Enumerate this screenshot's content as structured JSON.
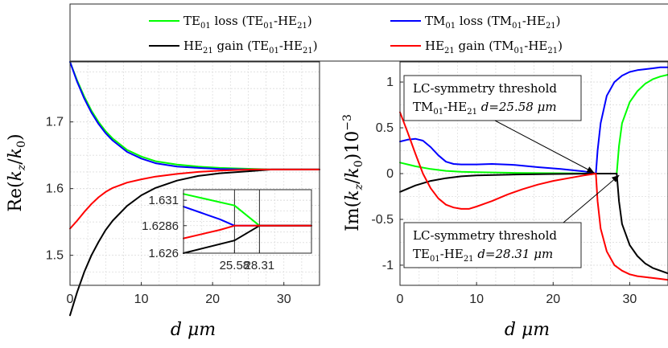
{
  "chart_data": [
    {
      "type": "line",
      "id": "left",
      "xlabel": "d μm",
      "ylabel": "Re(k_z/k_0)",
      "xlim": [
        0,
        35
      ],
      "ylim": [
        1.455,
        1.79
      ],
      "xticks": [
        0,
        10,
        20,
        30
      ],
      "yticks": [
        1.5,
        1.6,
        1.7
      ],
      "xtick_labels": [
        "0",
        "10",
        "20",
        "30"
      ],
      "ytick_labels": [
        "1.5",
        "1.6",
        "1.7"
      ],
      "grid": true,
      "series": [
        {
          "name": "TE01 loss (TE01-HE21)",
          "color": "#00ff00",
          "x": [
            0,
            1,
            2,
            3,
            4,
            5,
            6,
            8,
            10,
            12,
            15,
            18,
            21,
            25,
            28.31,
            32,
            35
          ],
          "y": [
            1.79,
            1.762,
            1.738,
            1.717,
            1.7,
            1.686,
            1.675,
            1.658,
            1.648,
            1.641,
            1.636,
            1.633,
            1.631,
            1.6297,
            1.6286,
            1.6286,
            1.6286
          ]
        },
        {
          "name": "TM01 loss (TM01-HE21)",
          "color": "#0000ff",
          "x": [
            0,
            1,
            2,
            3,
            4,
            5,
            6,
            8,
            10,
            12,
            15,
            18,
            21,
            25.58,
            28,
            32,
            35
          ],
          "y": [
            1.79,
            1.76,
            1.735,
            1.714,
            1.697,
            1.683,
            1.672,
            1.655,
            1.645,
            1.638,
            1.633,
            1.631,
            1.6295,
            1.6286,
            1.6286,
            1.6286,
            1.6286
          ]
        },
        {
          "name": "HE21 gain (TE01-HE21)",
          "color": "#000000",
          "x": [
            0,
            1,
            2,
            3,
            4,
            5,
            6,
            8,
            10,
            12,
            15,
            18,
            21,
            25,
            28.31,
            32,
            35
          ],
          "y": [
            1.41,
            1.445,
            1.475,
            1.5,
            1.52,
            1.538,
            1.552,
            1.574,
            1.59,
            1.601,
            1.612,
            1.619,
            1.623,
            1.626,
            1.6286,
            1.6286,
            1.6286
          ]
        },
        {
          "name": "HE21 gain (TM01-HE21)",
          "color": "#ff0000",
          "x": [
            0,
            1,
            2,
            3,
            4,
            5,
            6,
            8,
            10,
            12,
            15,
            18,
            21,
            25.58,
            28,
            32,
            35
          ],
          "y": [
            1.54,
            1.552,
            1.565,
            1.577,
            1.587,
            1.595,
            1.601,
            1.609,
            1.614,
            1.618,
            1.622,
            1.625,
            1.627,
            1.6286,
            1.6286,
            1.6286,
            1.6286
          ]
        }
      ]
    },
    {
      "type": "line",
      "id": "inset",
      "xlim": [
        20,
        34
      ],
      "ylim": [
        1.626,
        1.632
      ],
      "xticks": [
        25.58,
        28.31
      ],
      "yticks": [
        1.626,
        1.6286,
        1.631
      ],
      "xtick_labels": [
        "25.58",
        "28.31"
      ],
      "ytick_labels": [
        "1.626",
        "1.6286",
        "1.631"
      ],
      "grid": true,
      "series": [
        {
          "name": "TE01 loss (TE01-HE21)",
          "color": "#00ff00",
          "x": [
            20,
            25.58,
            28.31,
            34
          ],
          "y": [
            1.6316,
            1.6305,
            1.6286,
            1.6286
          ]
        },
        {
          "name": "TM01 loss (TM01-HE21)",
          "color": "#0000ff",
          "x": [
            20,
            22,
            24,
            25.58,
            34
          ],
          "y": [
            1.6304,
            1.6298,
            1.6292,
            1.6286,
            1.6286
          ]
        },
        {
          "name": "HE21 gain (TE01-HE21)",
          "color": "#000000",
          "x": [
            20,
            25.58,
            28.31,
            34
          ],
          "y": [
            1.626,
            1.6272,
            1.6286,
            1.6286
          ]
        },
        {
          "name": "HE21 gain (TM01-HE21)",
          "color": "#ff0000",
          "x": [
            20,
            22,
            24,
            25.58,
            34
          ],
          "y": [
            1.6274,
            1.6278,
            1.6282,
            1.6286,
            1.6286
          ]
        }
      ]
    },
    {
      "type": "line",
      "id": "right",
      "xlabel": "d μm",
      "ylabel": "Im(k_z/k_0)10^-3",
      "xlim": [
        0,
        35
      ],
      "ylim": [
        -1.22,
        1.22
      ],
      "xticks": [
        0,
        10,
        20,
        30
      ],
      "yticks": [
        -1,
        -0.5,
        0,
        0.5,
        1
      ],
      "xtick_labels": [
        "0",
        "10",
        "20",
        "30"
      ],
      "ytick_labels": [
        "-1",
        "-0.5",
        "0",
        "0.5",
        "1"
      ],
      "grid": true,
      "series": [
        {
          "name": "TE01 loss (TE01-HE21)",
          "color": "#00ff00",
          "x": [
            0,
            2,
            4,
            6,
            8,
            10,
            15,
            20,
            25.58,
            28.31,
            28.6,
            29,
            30,
            31,
            32,
            33,
            34,
            35
          ],
          "y": [
            0.12,
            0.08,
            0.05,
            0.03,
            0.02,
            0.015,
            0.008,
            0.004,
            0,
            0,
            0.3,
            0.55,
            0.78,
            0.9,
            0.98,
            1.03,
            1.06,
            1.08
          ]
        },
        {
          "name": "TM01 loss (TM01-HE21)",
          "color": "#0000ff",
          "x": [
            0,
            1,
            2,
            3,
            4,
            5,
            6,
            7,
            8,
            10,
            12,
            15,
            18,
            21,
            24,
            25.58,
            25.8,
            26.2,
            27,
            28,
            29,
            30,
            31,
            32,
            33,
            34,
            35
          ],
          "y": [
            0.35,
            0.37,
            0.38,
            0.36,
            0.29,
            0.2,
            0.13,
            0.105,
            0.1,
            0.1,
            0.105,
            0.095,
            0.07,
            0.05,
            0.025,
            0,
            0.25,
            0.55,
            0.85,
            1.0,
            1.07,
            1.11,
            1.13,
            1.14,
            1.15,
            1.16,
            1.16
          ]
        },
        {
          "name": "HE21 gain (TE01-HE21)",
          "color": "#000000",
          "x": [
            0,
            2,
            4,
            6,
            8,
            10,
            15,
            20,
            25.58,
            28.31,
            28.6,
            29,
            30,
            31,
            32,
            33,
            34,
            35
          ],
          "y": [
            -0.2,
            -0.13,
            -0.08,
            -0.05,
            -0.03,
            -0.02,
            -0.01,
            -0.004,
            0,
            0,
            -0.3,
            -0.55,
            -0.78,
            -0.9,
            -0.98,
            -1.03,
            -1.06,
            -1.09
          ]
        },
        {
          "name": "HE21 gain (TM01-HE21)",
          "color": "#ff0000",
          "x": [
            0,
            1,
            2,
            3,
            4,
            5,
            6,
            7,
            8,
            9,
            10,
            12,
            14,
            16,
            18,
            20,
            22,
            24,
            25.58,
            25.8,
            26.2,
            27,
            28,
            29,
            30,
            31,
            32,
            33,
            34,
            35
          ],
          "y": [
            0.67,
            0.45,
            0.22,
            0.0,
            -0.16,
            -0.27,
            -0.34,
            -0.37,
            -0.385,
            -0.385,
            -0.36,
            -0.3,
            -0.23,
            -0.17,
            -0.12,
            -0.08,
            -0.05,
            -0.02,
            0,
            -0.3,
            -0.6,
            -0.85,
            -1.0,
            -1.06,
            -1.1,
            -1.12,
            -1.13,
            -1.14,
            -1.15,
            -1.16
          ]
        }
      ]
    }
  ],
  "legend": [
    {
      "label_main": "TE",
      "label_sub": "01",
      "label_rest": " loss  (TE",
      "label_sub2": "01",
      "label_mid": "-HE",
      "label_sub3": "21",
      "label_end": ")",
      "color": "#00ff00"
    },
    {
      "label_main": "TM",
      "label_sub": "01",
      "label_rest": " loss (TM",
      "label_sub2": "01",
      "label_mid": "-HE",
      "label_sub3": "21",
      "label_end": ")",
      "color": "#0000ff"
    },
    {
      "label_main": "HE",
      "label_sub": "21",
      "label_rest": " gain (TE",
      "label_sub2": "01",
      "label_mid": "-HE",
      "label_sub3": "21",
      "label_end": ")",
      "color": "#000000"
    },
    {
      "label_main": "HE",
      "label_sub": "21",
      "label_rest": " gain (TM",
      "label_sub2": "01",
      "label_mid": "-HE",
      "label_sub3": "21",
      "label_end": ")",
      "color": "#ff0000"
    }
  ],
  "annotations": {
    "top": {
      "line1": "LC-symmetry threshold",
      "line2_a": "TM",
      "line2_sub1": "01",
      "line2_b": "-HE",
      "line2_sub2": "21",
      "line2_c": " d=25.58 μm",
      "target_x": 25.58,
      "target_y": 0
    },
    "bottom": {
      "line1": "LC-symmetry threshold",
      "line2_a": "TE",
      "line2_sub1": "01",
      "line2_b": "-HE",
      "line2_sub2": "21",
      "line2_c": " d=28.31 μm",
      "target_x": 28.31,
      "target_y": 0
    }
  },
  "axis_labels": {
    "left_x": "d μm",
    "right_x": "d μm",
    "left_y": "Re(kz/k0)",
    "right_y": "Im(kz/k0)10−3"
  }
}
